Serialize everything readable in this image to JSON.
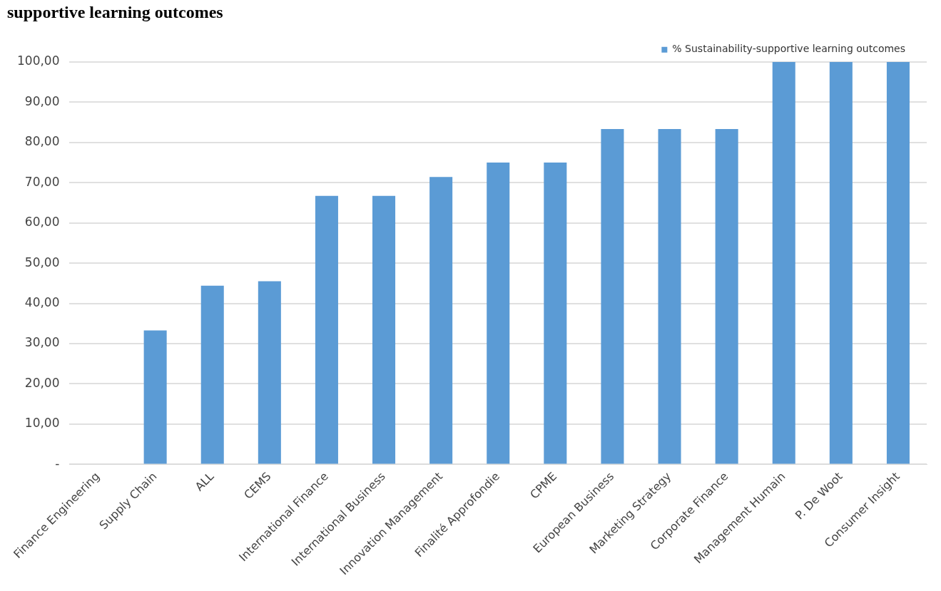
{
  "chart_data": {
    "type": "bar",
    "title": "supportive learning outcomes",
    "categories": [
      "Finance Engineering",
      "Supply Chain",
      "ALL",
      "CEMS",
      "International Finance",
      "International Business",
      "Innovation Management",
      "Finalité Approfondie",
      "CPME",
      "European Business",
      "Marketing Strategy",
      "Corporate Finance",
      "Management Humain",
      "P. De Woot",
      "Consumer Insight"
    ],
    "series": [
      {
        "name": "% Sustainability-supportive learning outcomes",
        "color": "#5b9bd5",
        "values": [
          0,
          33.3,
          44.4,
          45.5,
          66.7,
          66.7,
          71.4,
          75,
          75,
          83.3,
          83.3,
          83.3,
          100,
          100,
          100
        ]
      }
    ],
    "ylim": [
      0,
      100
    ],
    "yticks": [
      {
        "value": 0,
        "label": "-"
      },
      {
        "value": 10,
        "label": "10,00"
      },
      {
        "value": 20,
        "label": "20,00"
      },
      {
        "value": 30,
        "label": "30,00"
      },
      {
        "value": 40,
        "label": "40,00"
      },
      {
        "value": 50,
        "label": "50,00"
      },
      {
        "value": 60,
        "label": "60,00"
      },
      {
        "value": 70,
        "label": "70,00"
      },
      {
        "value": 80,
        "label": "80,00"
      },
      {
        "value": 90,
        "label": "90,00"
      },
      {
        "value": 100,
        "label": "100,00"
      }
    ],
    "grid": "y",
    "legend": "top right"
  }
}
